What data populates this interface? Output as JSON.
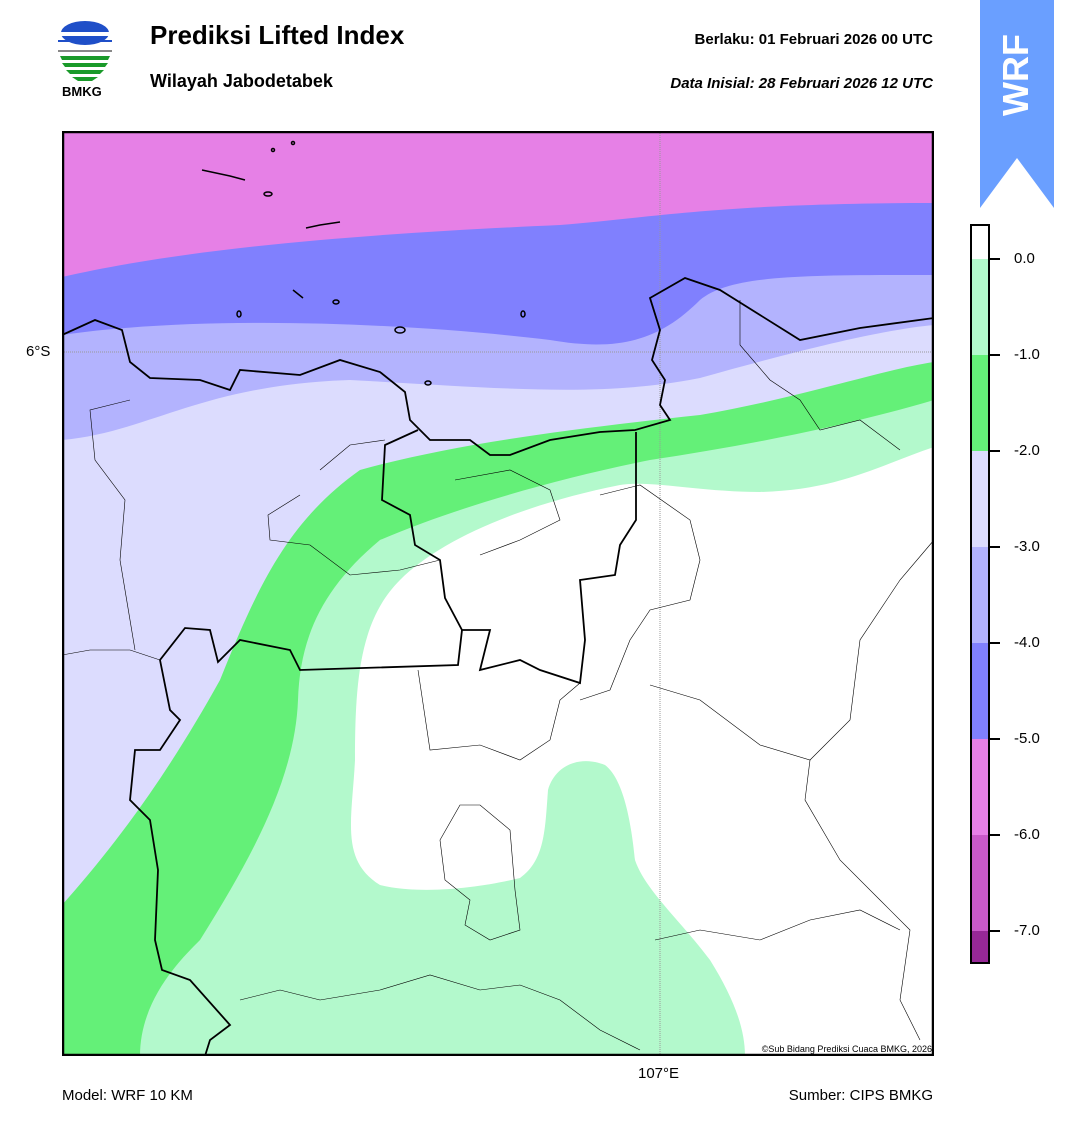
{
  "header": {
    "title": "Prediksi Lifted Index",
    "subtitle": "Wilayah Jabodetabek",
    "valid_label": "Berlaku:  01 Februari 2026 00 UTC",
    "init_label": "Data Inisial:  28 Februari 2026 12 UTC",
    "logo_text": "BMKG"
  },
  "badge": {
    "text": "WRF",
    "color": "#6a9fff"
  },
  "map": {
    "lat_label": "6°S",
    "lon_label": "107°E",
    "copyright": "©Sub Bidang Prediksi Cuaca BMKG, 2026"
  },
  "colorbar": {
    "ticks": [
      "0.0",
      "-1.0",
      "-2.0",
      "-3.0",
      "-4.0",
      "-5.0",
      "-6.0",
      "-7.0"
    ],
    "colors": [
      "#ffffff",
      "#b3f9cc",
      "#64f078",
      "#dcdcfe",
      "#b3b3fe",
      "#8080fe",
      "#e680e6",
      "#c85ac8",
      "#962896"
    ]
  },
  "footer": {
    "model": "Model: WRF 10 KM",
    "source": "Sumber: CIPS BMKG"
  }
}
